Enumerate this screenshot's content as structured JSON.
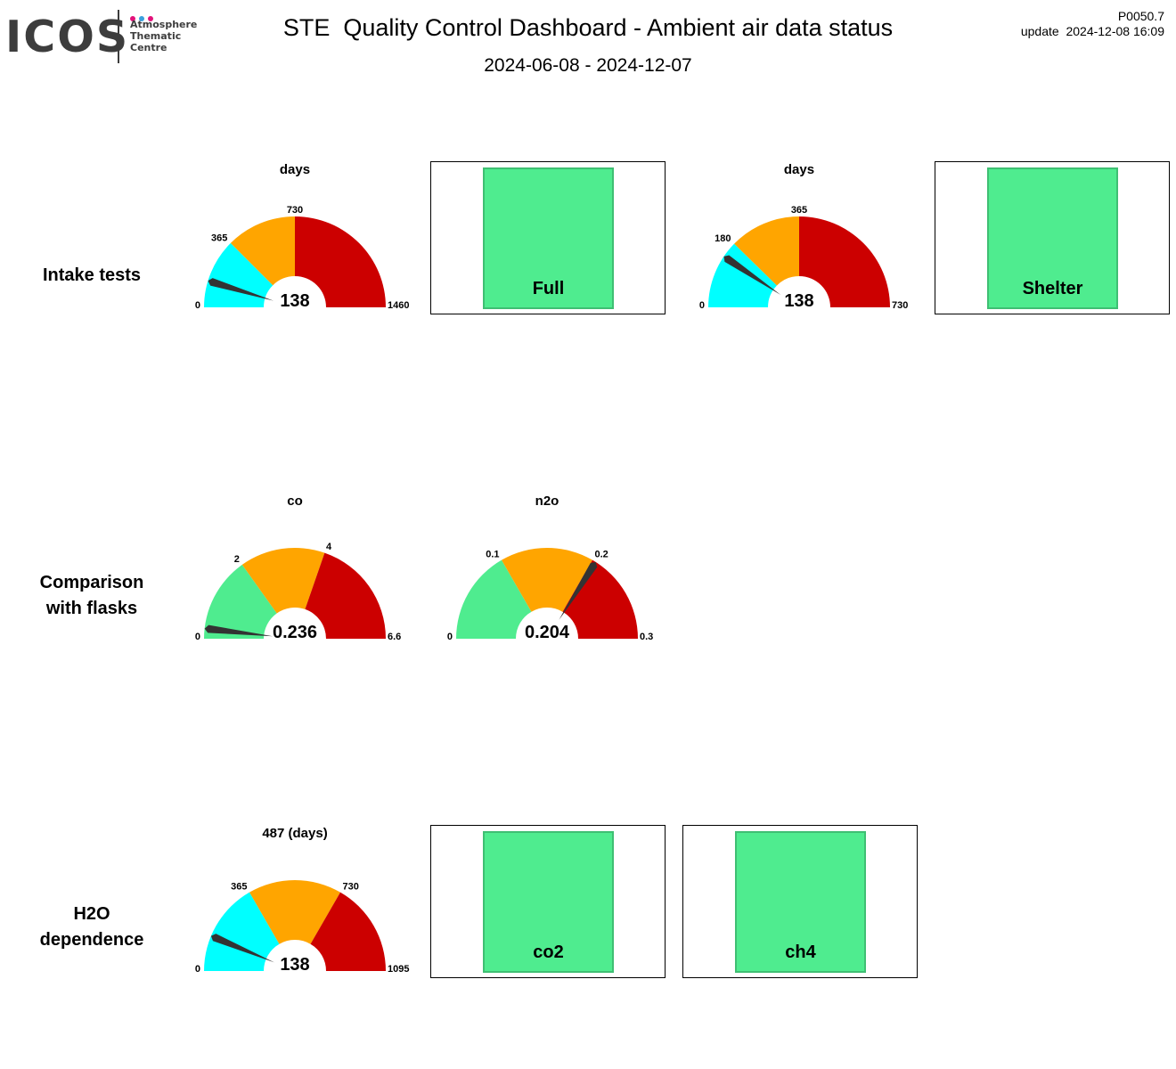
{
  "logo": {
    "mark": "ICOS",
    "lines": [
      "Atmosphere",
      "Thematic",
      "Centre"
    ],
    "dot_colors": [
      "#e2127a",
      "#3aa0dd",
      "#e2127a"
    ]
  },
  "header": {
    "title": "STE  Quality Control Dashboard - Ambient air data status",
    "period": "2024-06-08 - 2024-12-07",
    "version": "P0050.7",
    "update": "update  2024-12-08 16:09"
  },
  "rows": {
    "intake": {
      "lines": [
        "Intake tests"
      ]
    },
    "flasks": {
      "lines": [
        "Comparison",
        "with flasks"
      ]
    },
    "h2o": {
      "lines": [
        "H2O",
        "dependence"
      ]
    }
  },
  "colors": {
    "cyan": "#00ffff",
    "green": "#4fec8f",
    "orange": "#ffa500",
    "red": "#cc0000",
    "needle": "#333333"
  },
  "chart_data": [
    {
      "type": "gauge",
      "title": "days",
      "value": 138,
      "value_label": "138",
      "min": 0,
      "max": 1460,
      "needle_value": 138,
      "bands": [
        {
          "from": 0,
          "to": 365,
          "color": "cyan"
        },
        {
          "from": 365,
          "to": 730,
          "color": "orange"
        },
        {
          "from": 730,
          "to": 1460,
          "color": "red"
        }
      ],
      "tick_labels": [
        {
          "value": 0,
          "label": "0"
        },
        {
          "value": 365,
          "label": "365"
        },
        {
          "value": 730,
          "label": "730"
        },
        {
          "value": 1460,
          "label": "1460"
        }
      ]
    },
    {
      "type": "gauge",
      "title": "days",
      "value": 138,
      "value_label": "138",
      "min": 0,
      "max": 730,
      "needle_value": 138,
      "bands": [
        {
          "from": 0,
          "to": 180,
          "color": "cyan"
        },
        {
          "from": 180,
          "to": 365,
          "color": "orange"
        },
        {
          "from": 365,
          "to": 730,
          "color": "red"
        }
      ],
      "tick_labels": [
        {
          "value": 0,
          "label": "0"
        },
        {
          "value": 180,
          "label": "180"
        },
        {
          "value": 365,
          "label": "365"
        },
        {
          "value": 730,
          "label": "730"
        }
      ]
    },
    {
      "type": "gauge",
      "title": "co",
      "value": 0.236,
      "value_label": "0.236",
      "min": 0,
      "max": 6.6,
      "needle_value": 0.236,
      "bands": [
        {
          "from": 0,
          "to": 2,
          "color": "green"
        },
        {
          "from": 2,
          "to": 4,
          "color": "orange"
        },
        {
          "from": 4,
          "to": 6.6,
          "color": "red"
        }
      ],
      "tick_labels": [
        {
          "value": 0,
          "label": "0"
        },
        {
          "value": 2,
          "label": "2"
        },
        {
          "value": 4,
          "label": "4"
        },
        {
          "value": 6.6,
          "label": "6.6"
        }
      ]
    },
    {
      "type": "gauge",
      "title": "n2o",
      "value": 0.204,
      "value_label": "0.204",
      "min": 0,
      "max": 0.3,
      "needle_value": 0.204,
      "bands": [
        {
          "from": 0,
          "to": 0.1,
          "color": "green"
        },
        {
          "from": 0.1,
          "to": 0.2,
          "color": "orange"
        },
        {
          "from": 0.2,
          "to": 0.3,
          "color": "red"
        }
      ],
      "tick_labels": [
        {
          "value": 0,
          "label": "0"
        },
        {
          "value": 0.1,
          "label": "0.1"
        },
        {
          "value": 0.2,
          "label": "0.2"
        },
        {
          "value": 0.3,
          "label": "0.3"
        }
      ]
    },
    {
      "type": "gauge",
      "title": "487 (days)",
      "value": 138,
      "value_label": "138",
      "min": 0,
      "max": 1095,
      "needle_value": 138,
      "bands": [
        {
          "from": 0,
          "to": 365,
          "color": "cyan"
        },
        {
          "from": 365,
          "to": 730,
          "color": "orange"
        },
        {
          "from": 730,
          "to": 1095,
          "color": "red"
        }
      ],
      "tick_labels": [
        {
          "value": 0,
          "label": "0"
        },
        {
          "value": 365,
          "label": "365"
        },
        {
          "value": 730,
          "label": "730"
        },
        {
          "value": 1095,
          "label": "1095"
        }
      ]
    }
  ],
  "status_panels": [
    {
      "label": "Full",
      "status": "ok",
      "color": "green"
    },
    {
      "label": "Shelter",
      "status": "ok",
      "color": "green"
    },
    {
      "label": "co2",
      "status": "ok",
      "color": "green"
    },
    {
      "label": "ch4",
      "status": "ok",
      "color": "green"
    }
  ]
}
